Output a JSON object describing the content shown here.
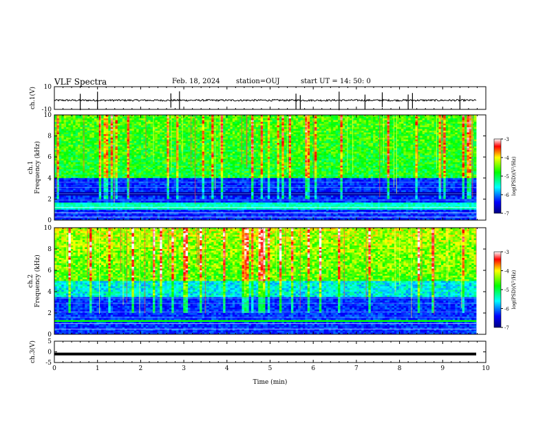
{
  "header": {
    "title": "VLF Spectra",
    "date": "Feb. 18, 2024",
    "station": "station=OUJ",
    "start": "start UT =  14: 50: 0"
  },
  "colors": {
    "frame": "#000000",
    "spectrogram_low": "#000080",
    "spectrogram_mid": "#00ff00",
    "spectrogram_high": "#ff0000"
  },
  "chart_data": [
    {
      "type": "line",
      "panel": "ch1-waveform",
      "ylabel": "ch.1(V)",
      "ylim": [
        -10,
        10
      ],
      "yticks": [
        "10",
        "-10"
      ],
      "xlim": [
        0,
        10
      ],
      "series": [
        {
          "description_values": "noise baseline near -2 V with sparse spikes",
          "baseline": -2,
          "spike_times_min": [
            0.6,
            1.0,
            2.7,
            2.9,
            5.6,
            5.7,
            6.6,
            7.2,
            7.6,
            8.2,
            8.3,
            9.4
          ]
        }
      ]
    },
    {
      "type": "heatmap",
      "panel": "ch1-spectrogram",
      "ylabel_top": "ch.1",
      "ylabel": "Frequency (kHz)",
      "ylim": [
        0,
        10
      ],
      "yticks": [
        "0",
        "2",
        "4",
        "6",
        "8",
        "10"
      ],
      "xlim": [
        0,
        10
      ],
      "colorbar": {
        "label": "log(PSD)(V²/Hz)",
        "range": [
          -7,
          -3
        ],
        "ticks": [
          "-3",
          "-4",
          "-5",
          "-6",
          "-7"
        ]
      }
    },
    {
      "type": "heatmap",
      "panel": "ch2-spectrogram",
      "ylabel_top": "ch.2",
      "ylabel": "Frequency (kHz)",
      "ylim": [
        0,
        10
      ],
      "yticks": [
        "0",
        "2",
        "4",
        "6",
        "8",
        "10"
      ],
      "xlim": [
        0,
        10
      ],
      "colorbar": {
        "label": "log(PSD)(V²/Hz)",
        "range": [
          -7,
          -3
        ],
        "ticks": [
          "-3",
          "-4",
          "-5",
          "-6",
          "-7"
        ]
      }
    },
    {
      "type": "line",
      "panel": "ch3-waveform",
      "ylabel": "ch.3(V)",
      "ylim": [
        -5,
        5
      ],
      "yticks": [
        "5",
        "0",
        "-5"
      ],
      "xlim": [
        0,
        10
      ],
      "series": [
        {
          "baseline": -1
        }
      ]
    }
  ],
  "xaxis": {
    "label": "Time (min)",
    "ticks": [
      "0",
      "1",
      "2",
      "3",
      "4",
      "5",
      "6",
      "7",
      "8",
      "9",
      "10"
    ]
  }
}
